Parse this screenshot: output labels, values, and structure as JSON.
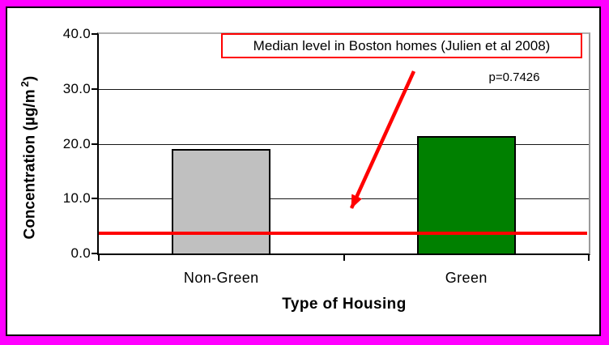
{
  "frame": {
    "border_color": "#ff00ff",
    "inner_border_color": "#000000",
    "background": "#ffffff"
  },
  "chart_data": {
    "type": "bar",
    "categories": [
      "Non-Green",
      "Green"
    ],
    "values": [
      19.0,
      21.4
    ],
    "bar_colors": [
      "#c0c0c0",
      "#008000"
    ],
    "bar_border_color": "#000000",
    "title": "",
    "xlabel": "Type of Housing",
    "ylabel": "Concentration (µg/m²)",
    "ylim": [
      0,
      40
    ],
    "yticks": [
      0,
      10,
      20,
      30,
      40
    ],
    "ytick_labels": [
      "0.0",
      "10.0",
      "20.0",
      "30.0",
      "40.0"
    ],
    "grid": true,
    "legend_position": "none",
    "reference_line": {
      "value": 3.7,
      "color": "#ff0000",
      "label": "Median level in Boston homes (Julien et al 2008)"
    },
    "annotations": [
      {
        "text": "p=0.7426"
      },
      {
        "text": "Median level in Boston homes (Julien et al 2008)",
        "style": "red-bordered-box-with-arrow"
      }
    ]
  },
  "annotation_box": {
    "text": "Median level in Boston homes (Julien et al 2008)",
    "border_color": "#ff0000"
  },
  "p_label": {
    "text": "p=0.7426"
  },
  "y_axis_title": {
    "main": "Concentration (µg/m",
    "sup": "2",
    "close": ")"
  },
  "x_axis_title": {
    "text": "Type of Housing"
  },
  "arrow": {
    "color": "#ff0000"
  }
}
